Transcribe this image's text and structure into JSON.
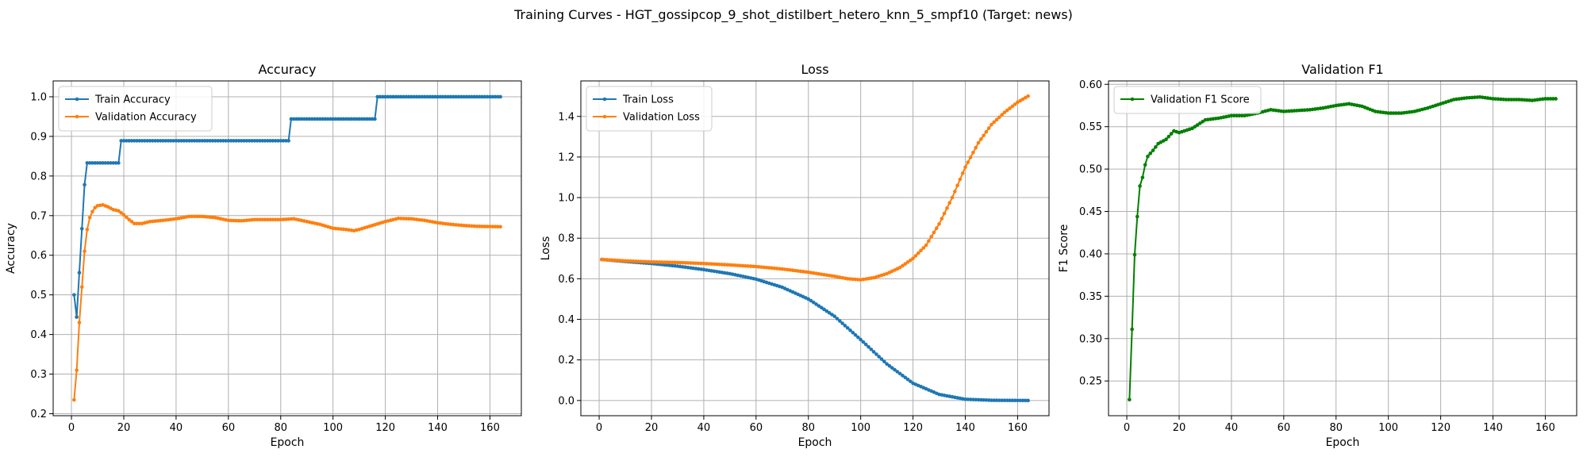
{
  "figure": {
    "suptitle": "Training Curves - HGT_gossipcop_9_shot_distilbert_hetero_knn_5_smpf10 (Target: news)"
  },
  "colors": {
    "blue": "#1f77b4",
    "orange": "#ff7f0e",
    "green": "#008000",
    "grid": "#b0b0b0"
  },
  "chart_data": [
    {
      "type": "line",
      "title": "Accuracy",
      "xlabel": "Epoch",
      "ylabel": "Accuracy",
      "xlim": [
        -7,
        172
      ],
      "ylim": [
        0.195,
        1.04
      ],
      "xticks": [
        0,
        20,
        40,
        60,
        80,
        100,
        120,
        140,
        160
      ],
      "yticks": [
        0.2,
        0.3,
        0.4,
        0.5,
        0.6,
        0.7,
        0.8,
        0.9,
        1.0
      ],
      "ytick_labels": [
        "0.2",
        "0.3",
        "0.4",
        "0.5",
        "0.6",
        "0.7",
        "0.8",
        "0.9",
        "1.0"
      ],
      "grid": true,
      "legend": "upper left",
      "series": [
        {
          "name": "Train Accuracy",
          "color": "#1f77b4",
          "keypoints": [
            [
              1,
              0.5
            ],
            [
              2,
              0.444
            ],
            [
              3,
              0.556
            ],
            [
              4,
              0.667
            ],
            [
              5,
              0.778
            ],
            [
              6,
              0.833
            ],
            [
              18,
              0.833
            ],
            [
              19,
              0.889
            ],
            [
              83,
              0.889
            ],
            [
              84,
              0.944
            ],
            [
              116,
              0.944
            ],
            [
              117,
              1.0
            ],
            [
              164,
              1.0
            ]
          ],
          "interp": "step"
        },
        {
          "name": "Validation Accuracy",
          "color": "#ff7f0e",
          "keypoints": [
            [
              1,
              0.235
            ],
            [
              2,
              0.31
            ],
            [
              3,
              0.43
            ],
            [
              4,
              0.52
            ],
            [
              5,
              0.61
            ],
            [
              6,
              0.665
            ],
            [
              7,
              0.695
            ],
            [
              8,
              0.71
            ],
            [
              9,
              0.72
            ],
            [
              10,
              0.725
            ],
            [
              12,
              0.727
            ],
            [
              14,
              0.722
            ],
            [
              16,
              0.715
            ],
            [
              18,
              0.712
            ],
            [
              20,
              0.702
            ],
            [
              22,
              0.69
            ],
            [
              24,
              0.68
            ],
            [
              27,
              0.68
            ],
            [
              30,
              0.685
            ],
            [
              35,
              0.688
            ],
            [
              40,
              0.692
            ],
            [
              45,
              0.698
            ],
            [
              50,
              0.698
            ],
            [
              55,
              0.695
            ],
            [
              60,
              0.688
            ],
            [
              65,
              0.687
            ],
            [
              70,
              0.69
            ],
            [
              75,
              0.69
            ],
            [
              80,
              0.69
            ],
            [
              85,
              0.692
            ],
            [
              90,
              0.685
            ],
            [
              95,
              0.678
            ],
            [
              100,
              0.668
            ],
            [
              105,
              0.665
            ],
            [
              108,
              0.662
            ],
            [
              110,
              0.665
            ],
            [
              115,
              0.675
            ],
            [
              120,
              0.685
            ],
            [
              125,
              0.693
            ],
            [
              130,
              0.692
            ],
            [
              135,
              0.688
            ],
            [
              140,
              0.682
            ],
            [
              145,
              0.678
            ],
            [
              150,
              0.675
            ],
            [
              155,
              0.673
            ],
            [
              164,
              0.672
            ]
          ],
          "interp": "linear"
        }
      ]
    },
    {
      "type": "line",
      "title": "Loss",
      "xlabel": "Epoch",
      "ylabel": "Loss",
      "xlim": [
        -7,
        172
      ],
      "ylim": [
        -0.075,
        1.575
      ],
      "xticks": [
        0,
        20,
        40,
        60,
        80,
        100,
        120,
        140,
        160
      ],
      "yticks": [
        0.0,
        0.2,
        0.4,
        0.6,
        0.8,
        1.0,
        1.2,
        1.4
      ],
      "ytick_labels": [
        "0.0",
        "0.2",
        "0.4",
        "0.6",
        "0.8",
        "1.0",
        "1.2",
        "1.4"
      ],
      "grid": true,
      "legend": "upper left",
      "series": [
        {
          "name": "Train Loss",
          "color": "#1f77b4",
          "keypoints": [
            [
              1,
              0.695
            ],
            [
              10,
              0.685
            ],
            [
              20,
              0.675
            ],
            [
              30,
              0.662
            ],
            [
              40,
              0.645
            ],
            [
              50,
              0.625
            ],
            [
              60,
              0.598
            ],
            [
              70,
              0.558
            ],
            [
              80,
              0.5
            ],
            [
              90,
              0.415
            ],
            [
              100,
              0.3
            ],
            [
              110,
              0.18
            ],
            [
              120,
              0.085
            ],
            [
              130,
              0.03
            ],
            [
              140,
              0.006
            ],
            [
              150,
              0.001
            ],
            [
              164,
              0.0
            ]
          ],
          "interp": "linear"
        },
        {
          "name": "Validation Loss",
          "color": "#ff7f0e",
          "keypoints": [
            [
              1,
              0.695
            ],
            [
              10,
              0.688
            ],
            [
              20,
              0.683
            ],
            [
              30,
              0.68
            ],
            [
              40,
              0.675
            ],
            [
              50,
              0.668
            ],
            [
              60,
              0.66
            ],
            [
              70,
              0.648
            ],
            [
              80,
              0.632
            ],
            [
              90,
              0.612
            ],
            [
              95,
              0.6
            ],
            [
              100,
              0.595
            ],
            [
              105,
              0.605
            ],
            [
              110,
              0.625
            ],
            [
              115,
              0.655
            ],
            [
              120,
              0.7
            ],
            [
              125,
              0.765
            ],
            [
              130,
              0.87
            ],
            [
              135,
              1.0
            ],
            [
              140,
              1.15
            ],
            [
              145,
              1.27
            ],
            [
              150,
              1.36
            ],
            [
              155,
              1.42
            ],
            [
              160,
              1.47
            ],
            [
              164,
              1.5
            ]
          ],
          "interp": "linear"
        }
      ]
    },
    {
      "type": "line",
      "title": "Validation F1",
      "xlabel": "Epoch",
      "ylabel": "F1 Score",
      "xlim": [
        -7,
        172
      ],
      "ylim": [
        0.209,
        0.604
      ],
      "xticks": [
        0,
        20,
        40,
        60,
        80,
        100,
        120,
        140,
        160
      ],
      "yticks": [
        0.25,
        0.3,
        0.35,
        0.4,
        0.45,
        0.5,
        0.55,
        0.6
      ],
      "ytick_labels": [
        "0.25",
        "0.30",
        "0.35",
        "0.40",
        "0.45",
        "0.50",
        "0.55",
        "0.60"
      ],
      "grid": true,
      "legend": "upper left",
      "series": [
        {
          "name": "Validation F1 Score",
          "color": "#008000",
          "keypoints": [
            [
              1,
              0.228
            ],
            [
              2,
              0.311
            ],
            [
              3,
              0.399
            ],
            [
              4,
              0.444
            ],
            [
              5,
              0.48
            ],
            [
              6,
              0.49
            ],
            [
              7,
              0.505
            ],
            [
              8,
              0.515
            ],
            [
              10,
              0.522
            ],
            [
              12,
              0.53
            ],
            [
              15,
              0.535
            ],
            [
              18,
              0.545
            ],
            [
              20,
              0.543
            ],
            [
              25,
              0.548
            ],
            [
              30,
              0.558
            ],
            [
              35,
              0.56
            ],
            [
              40,
              0.563
            ],
            [
              45,
              0.563
            ],
            [
              50,
              0.566
            ],
            [
              55,
              0.57
            ],
            [
              60,
              0.568
            ],
            [
              65,
              0.569
            ],
            [
              70,
              0.57
            ],
            [
              75,
              0.572
            ],
            [
              80,
              0.575
            ],
            [
              85,
              0.577
            ],
            [
              90,
              0.574
            ],
            [
              95,
              0.568
            ],
            [
              100,
              0.566
            ],
            [
              105,
              0.566
            ],
            [
              110,
              0.568
            ],
            [
              115,
              0.572
            ],
            [
              120,
              0.577
            ],
            [
              125,
              0.582
            ],
            [
              130,
              0.584
            ],
            [
              135,
              0.585
            ],
            [
              140,
              0.583
            ],
            [
              145,
              0.582
            ],
            [
              150,
              0.582
            ],
            [
              155,
              0.581
            ],
            [
              160,
              0.583
            ],
            [
              164,
              0.583
            ]
          ],
          "interp": "linear"
        }
      ]
    }
  ]
}
